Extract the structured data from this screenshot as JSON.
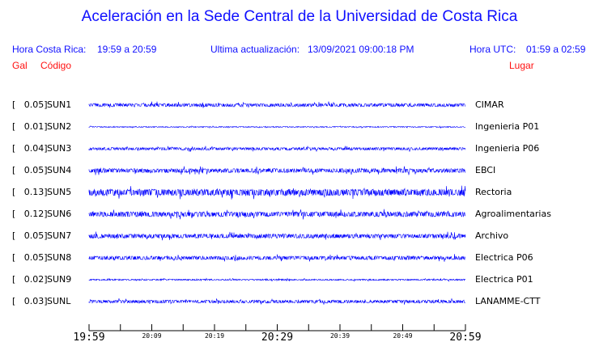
{
  "title": "Aceleración en la Sede Central de la Universidad de Costa Rica",
  "header": {
    "hora_cr_label": "Hora Costa Rica:",
    "hora_cr": "19:59 a 20:59",
    "update_label": "Ultima actualización:",
    "update": "13/09/2021 09:00:18 PM",
    "hora_utc_label": "Hora UTC:",
    "hora_utc": "01:59 a 02:59",
    "col_gal": "Gal",
    "col_codigo": "Código",
    "col_lugar": "Lugar"
  },
  "chart_data": {
    "type": "line",
    "title": "Aceleración en la Sede Central de la Universidad de Costa Rica",
    "x_ticks_major": [
      "19:59",
      "20:29",
      "20:59"
    ],
    "x_ticks_minor": [
      "20:09",
      "20:19",
      "20:39",
      "20:49"
    ],
    "stations": [
      {
        "gal": "[   0.05]",
        "code": "SUN1",
        "place": "CIMAR"
      },
      {
        "gal": "[   0.01]",
        "code": "SUN2",
        "place": "Ingenieria P01"
      },
      {
        "gal": "[   0.04]",
        "code": "SUN3",
        "place": "Ingenieria P06"
      },
      {
        "gal": "[   0.05]",
        "code": "SUN4",
        "place": "EBCI"
      },
      {
        "gal": "[   0.13]",
        "code": "SUN5",
        "place": "Rectoria"
      },
      {
        "gal": "[   0.12]",
        "code": "SUN6",
        "place": "Agroalimentarias"
      },
      {
        "gal": "[   0.05]",
        "code": "SUN7",
        "place": "Archivo"
      },
      {
        "gal": "[   0.05]",
        "code": "SUN8",
        "place": "Electrica P06"
      },
      {
        "gal": "[   0.02]",
        "code": "SUN9",
        "place": "Electrica P01"
      },
      {
        "gal": "[   0.03]",
        "code": "SUNL",
        "place": "LANAMME-CTT"
      }
    ]
  }
}
